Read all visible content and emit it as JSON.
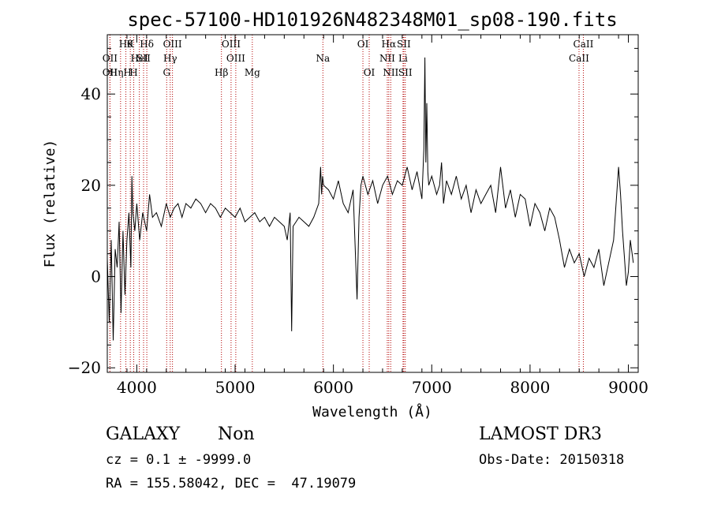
{
  "chart_data": {
    "type": "line",
    "title": "spec-57100-HD101926N482348M01_sp08-190.fits",
    "xlabel": "Wavelength (Å)",
    "ylabel": "Flux (relative)",
    "xlim": [
      3700,
      9100
    ],
    "ylim": [
      -21,
      53
    ],
    "x_ticks": [
      4000,
      5000,
      6000,
      7000,
      8000,
      9000
    ],
    "y_ticks": [
      -20,
      0,
      20,
      40
    ],
    "grid": false,
    "series": [
      {
        "line_color": "#000000",
        "x": [
          3700,
          3720,
          3740,
          3760,
          3780,
          3800,
          3820,
          3840,
          3860,
          3880,
          3900,
          3920,
          3940,
          3950,
          3960,
          3980,
          4000,
          4030,
          4060,
          4100,
          4130,
          4160,
          4200,
          4250,
          4300,
          4340,
          4380,
          4420,
          4460,
          4500,
          4550,
          4600,
          4650,
          4700,
          4750,
          4800,
          4850,
          4900,
          4950,
          5000,
          5050,
          5100,
          5150,
          5200,
          5250,
          5300,
          5350,
          5400,
          5450,
          5500,
          5530,
          5560,
          5575,
          5590,
          5620,
          5650,
          5700,
          5750,
          5800,
          5850,
          5870,
          5880,
          5890,
          5900,
          5950,
          6000,
          6050,
          6100,
          6150,
          6200,
          6240,
          6260,
          6280,
          6300,
          6350,
          6400,
          6450,
          6500,
          6550,
          6600,
          6650,
          6700,
          6750,
          6800,
          6850,
          6900,
          6920,
          6930,
          6940,
          6950,
          6960,
          6970,
          7000,
          7050,
          7080,
          7100,
          7120,
          7150,
          7200,
          7250,
          7300,
          7350,
          7400,
          7450,
          7500,
          7550,
          7600,
          7650,
          7700,
          7750,
          7800,
          7850,
          7900,
          7950,
          8000,
          8050,
          8100,
          8150,
          8200,
          8250,
          8300,
          8350,
          8400,
          8450,
          8500,
          8550,
          8600,
          8650,
          8700,
          8750,
          8800,
          8850,
          8900,
          8920,
          8940,
          8960,
          8980,
          9000,
          9020,
          9050
        ],
        "y": [
          4,
          -10,
          8,
          -14,
          6,
          2,
          12,
          -8,
          10,
          -4,
          8,
          14,
          2,
          22,
          14,
          10,
          16,
          8,
          14,
          10,
          18,
          13,
          14,
          11,
          16,
          13,
          15,
          16,
          13,
          16,
          15,
          17,
          16,
          14,
          16,
          15,
          13,
          15,
          14,
          13,
          15,
          12,
          13,
          14,
          12,
          13,
          11,
          13,
          12,
          11,
          8,
          14,
          -12,
          11,
          12,
          13,
          12,
          11,
          13,
          16,
          24,
          18,
          22,
          20,
          19,
          17,
          21,
          16,
          14,
          19,
          -5,
          13,
          20,
          22,
          18,
          21,
          16,
          20,
          22,
          18,
          21,
          20,
          24,
          19,
          23,
          17,
          28,
          48,
          25,
          38,
          23,
          20,
          22,
          18,
          20,
          25,
          16,
          21,
          18,
          22,
          17,
          20,
          14,
          19,
          16,
          18,
          20,
          14,
          24,
          15,
          19,
          13,
          18,
          17,
          11,
          16,
          14,
          10,
          15,
          13,
          8,
          2,
          6,
          3,
          5,
          0,
          4,
          2,
          6,
          -2,
          3,
          8,
          24,
          18,
          10,
          4,
          -2,
          1,
          8,
          3
        ]
      }
    ],
    "reference_lines": [
      {
        "label": "OII",
        "x": 3727,
        "row": 2
      },
      {
        "label": "HηH",
        "x": 3835,
        "row": 3
      },
      {
        "label": "Hθ",
        "x": 3889,
        "row": 1
      },
      {
        "label": "OII",
        "x": 3727,
        "row": 3
      },
      {
        "label": "HeI",
        "x": 4026,
        "row": 2
      },
      {
        "label": "K",
        "x": 3934,
        "row": 1
      },
      {
        "label": "H",
        "x": 3969,
        "row": 3
      },
      {
        "label": "Hδ",
        "x": 4102,
        "row": 1
      },
      {
        "label": "SII",
        "x": 4069,
        "row": 2
      },
      {
        "label": "OIII",
        "x": 4363,
        "row": 1
      },
      {
        "label": "Hγ",
        "x": 4340,
        "row": 2
      },
      {
        "label": "G",
        "x": 4304,
        "row": 3
      },
      {
        "label": "OIII",
        "x": 4959,
        "row": 1
      },
      {
        "label": "OIII",
        "x": 5007,
        "row": 2
      },
      {
        "label": "Hβ",
        "x": 4861,
        "row": 3
      },
      {
        "label": "Mg",
        "x": 5175,
        "row": 3
      },
      {
        "label": "Na",
        "x": 5893,
        "row": 2
      },
      {
        "label": "OI",
        "x": 6300,
        "row": 1
      },
      {
        "label": "OI",
        "x": 6364,
        "row": 3
      },
      {
        "label": "Hα",
        "x": 6563,
        "row": 1
      },
      {
        "label": "NII",
        "x": 6548,
        "row": 2
      },
      {
        "label": "NII",
        "x": 6583,
        "row": 3
      },
      {
        "label": "SII",
        "x": 6716,
        "row": 1
      },
      {
        "label": "Li",
        "x": 6708,
        "row": 2
      },
      {
        "label": "SII",
        "x": 6731,
        "row": 3
      },
      {
        "label": "CaII",
        "x": 8542,
        "row": 1
      },
      {
        "label": "CaII",
        "x": 8498,
        "row": 2
      }
    ]
  },
  "info": {
    "class_label": "GALAXY",
    "subclass_label": "Non",
    "survey": "LAMOST DR3",
    "cz_line": "cz = 0.1 ± -9999.0",
    "obs_date": "Obs-Date: 20150318",
    "coords_line": "RA = 155.58042, DEC =  47.19079"
  }
}
